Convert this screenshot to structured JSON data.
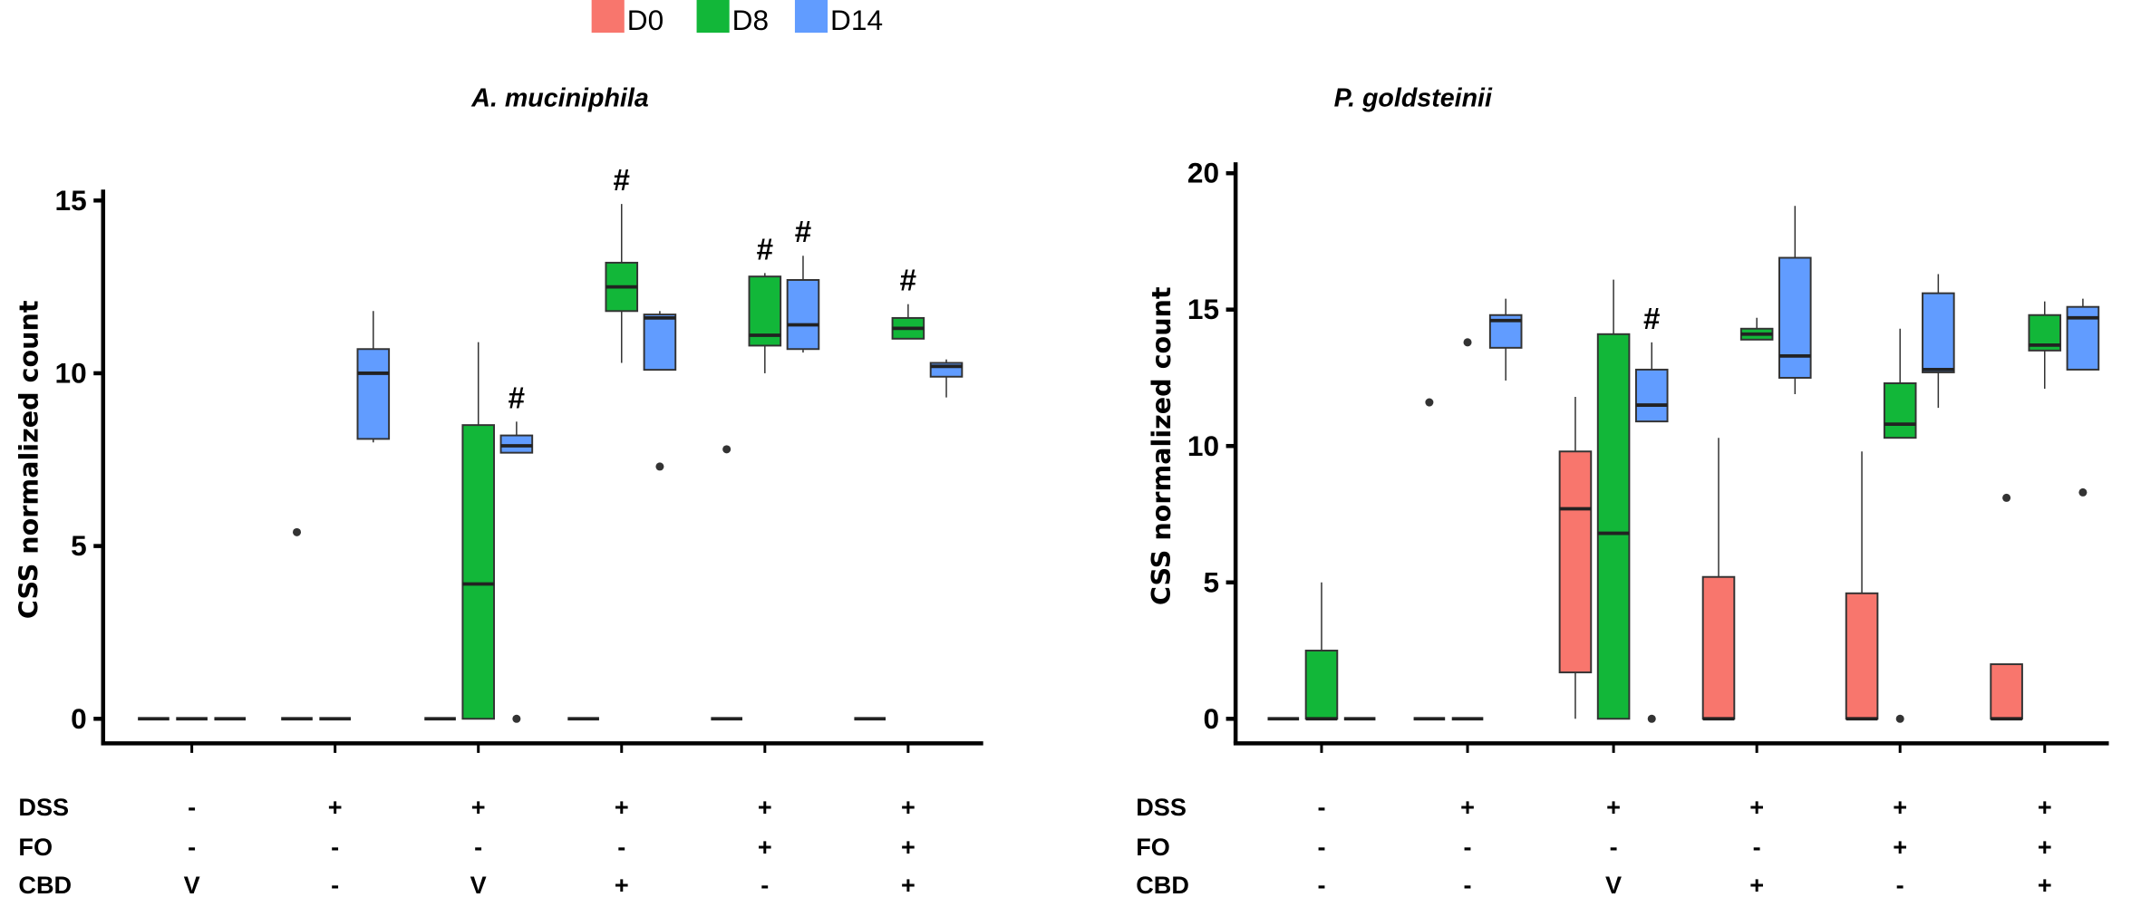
{
  "chart_data": [
    {
      "type": "box",
      "title": "A. muciniphila",
      "ylabel": "CSS normalized count",
      "ylim": [
        0,
        15
      ],
      "yticks": [
        0,
        5,
        10,
        15
      ],
      "series_names": [
        "D0",
        "D8",
        "D14"
      ],
      "treatment_rows": [
        {
          "label": "DSS",
          "values": [
            "-",
            "+",
            "+",
            "+",
            "+",
            "+"
          ]
        },
        {
          "label": "FO",
          "values": [
            "-",
            "-",
            "-",
            "-",
            "+",
            "+"
          ]
        },
        {
          "label": "CBD",
          "values": [
            "V",
            "-",
            "V",
            "+",
            "-",
            "+"
          ]
        }
      ],
      "groups": [
        {
          "D0": {
            "min": 0,
            "q1": 0,
            "median": 0,
            "q3": 0,
            "max": 0,
            "outliers": []
          },
          "D8": {
            "min": 0,
            "q1": 0,
            "median": 0,
            "q3": 0,
            "max": 0,
            "outliers": []
          },
          "D14": {
            "min": 0,
            "q1": 0,
            "median": 0,
            "q3": 0,
            "max": 0,
            "outliers": []
          },
          "marks": []
        },
        {
          "D0": {
            "min": 0,
            "q1": 0,
            "median": 0,
            "q3": 0,
            "max": 0,
            "outliers": [
              5.4
            ]
          },
          "D8": {
            "min": 0,
            "q1": 0,
            "median": 0,
            "q3": 0,
            "max": 0,
            "outliers": []
          },
          "D14": {
            "min": 8.0,
            "q1": 8.1,
            "median": 10.0,
            "q3": 10.7,
            "max": 11.8,
            "outliers": []
          },
          "marks": []
        },
        {
          "D0": {
            "min": 0,
            "q1": 0,
            "median": 0,
            "q3": 0,
            "max": 0,
            "outliers": []
          },
          "D8": {
            "min": 0,
            "q1": 0,
            "median": 3.9,
            "q3": 8.5,
            "max": 10.9,
            "outliers": []
          },
          "D14": {
            "min": 7.7,
            "q1": 7.7,
            "median": 7.9,
            "q3": 8.2,
            "max": 8.6,
            "outliers": [
              0
            ]
          },
          "marks": [
            "D14"
          ]
        },
        {
          "D0": {
            "min": 0,
            "q1": 0,
            "median": 0,
            "q3": 0,
            "max": 0,
            "outliers": []
          },
          "D8": {
            "min": 10.3,
            "q1": 11.8,
            "median": 12.5,
            "q3": 13.2,
            "max": 14.9,
            "outliers": []
          },
          "D14": {
            "min": 10.1,
            "q1": 10.1,
            "median": 11.6,
            "q3": 11.7,
            "max": 11.8,
            "outliers": [
              7.3
            ]
          },
          "marks": [
            "D8"
          ]
        },
        {
          "D0": {
            "min": 0,
            "q1": 0,
            "median": 0,
            "q3": 0,
            "max": 0,
            "outliers": [
              7.8
            ]
          },
          "D8": {
            "min": 10.0,
            "q1": 10.8,
            "median": 11.1,
            "q3": 12.8,
            "max": 12.9,
            "outliers": []
          },
          "D14": {
            "min": 10.6,
            "q1": 10.7,
            "median": 11.4,
            "q3": 12.7,
            "max": 13.4,
            "outliers": []
          },
          "marks": [
            "D8",
            "D14"
          ]
        },
        {
          "D0": {
            "min": 0,
            "q1": 0,
            "median": 0,
            "q3": 0,
            "max": 0,
            "outliers": []
          },
          "D8": {
            "min": 11.0,
            "q1": 11.0,
            "median": 11.3,
            "q3": 11.6,
            "max": 12.0,
            "outliers": []
          },
          "D14": {
            "min": 9.3,
            "q1": 9.9,
            "median": 10.2,
            "q3": 10.3,
            "max": 10.4,
            "outliers": []
          },
          "marks": [
            "D8"
          ]
        }
      ]
    },
    {
      "type": "box",
      "title": "P. goldsteinii",
      "ylabel": "CSS normalized count",
      "ylim": [
        0,
        20
      ],
      "yticks": [
        0,
        5,
        10,
        15,
        20
      ],
      "series_names": [
        "D0",
        "D8",
        "D14"
      ],
      "treatment_rows": [
        {
          "label": "DSS",
          "values": [
            "-",
            "+",
            "+",
            "+",
            "+",
            "+"
          ]
        },
        {
          "label": "FO",
          "values": [
            "-",
            "-",
            "-",
            "-",
            "+",
            "+"
          ]
        },
        {
          "label": "CBD",
          "values": [
            "-",
            "-",
            "V",
            "+",
            "-",
            "+"
          ]
        }
      ],
      "groups": [
        {
          "D0": {
            "min": 0,
            "q1": 0,
            "median": 0,
            "q3": 0,
            "max": 0,
            "outliers": []
          },
          "D8": {
            "min": 0,
            "q1": 0,
            "median": 0,
            "q3": 2.5,
            "max": 5.0,
            "outliers": []
          },
          "D14": {
            "min": 0,
            "q1": 0,
            "median": 0,
            "q3": 0,
            "max": 0,
            "outliers": []
          },
          "marks": []
        },
        {
          "D0": {
            "min": 0,
            "q1": 0,
            "median": 0,
            "q3": 0,
            "max": 0,
            "outliers": [
              11.6
            ]
          },
          "D8": {
            "min": 0,
            "q1": 0,
            "median": 0,
            "q3": 0,
            "max": 0,
            "outliers": [
              13.8
            ]
          },
          "D14": {
            "min": 12.4,
            "q1": 13.6,
            "median": 14.6,
            "q3": 14.8,
            "max": 15.4,
            "outliers": []
          },
          "marks": []
        },
        {
          "D0": {
            "min": 0,
            "q1": 1.7,
            "median": 7.7,
            "q3": 9.8,
            "max": 11.8,
            "outliers": []
          },
          "D8": {
            "min": 0,
            "q1": 0,
            "median": 6.8,
            "q3": 14.1,
            "max": 16.1,
            "outliers": []
          },
          "D14": {
            "min": 10.9,
            "q1": 10.9,
            "median": 11.5,
            "q3": 12.8,
            "max": 13.8,
            "outliers": [
              0
            ]
          },
          "marks": [
            "D14"
          ]
        },
        {
          "D0": {
            "min": 0,
            "q1": 0,
            "median": 0,
            "q3": 5.2,
            "max": 10.3,
            "outliers": []
          },
          "D8": {
            "min": 13.9,
            "q1": 13.9,
            "median": 14.1,
            "q3": 14.3,
            "max": 14.7,
            "outliers": []
          },
          "D14": {
            "min": 11.9,
            "q1": 12.5,
            "median": 13.3,
            "q3": 16.9,
            "max": 18.8,
            "outliers": []
          },
          "marks": []
        },
        {
          "D0": {
            "min": 0,
            "q1": 0,
            "median": 0,
            "q3": 4.6,
            "max": 9.8,
            "outliers": []
          },
          "D8": {
            "min": 10.3,
            "q1": 10.3,
            "median": 10.8,
            "q3": 12.3,
            "max": 14.3,
            "outliers": [
              0
            ]
          },
          "D14": {
            "min": 11.4,
            "q1": 12.7,
            "median": 12.8,
            "q3": 15.6,
            "max": 16.3,
            "outliers": []
          },
          "marks": []
        },
        {
          "D0": {
            "min": 0,
            "q1": 0,
            "median": 0,
            "q3": 2.0,
            "max": 2.0,
            "outliers": [
              8.1
            ]
          },
          "D8": {
            "min": 12.1,
            "q1": 13.5,
            "median": 13.7,
            "q3": 14.8,
            "max": 15.3,
            "outliers": []
          },
          "D14": {
            "min": 12.8,
            "q1": 12.8,
            "median": 14.7,
            "q3": 15.1,
            "max": 15.4,
            "outliers": [
              8.3
            ]
          },
          "marks": []
        }
      ]
    }
  ],
  "legend": {
    "items": [
      {
        "label": "D0",
        "color": "#F8766D"
      },
      {
        "label": "D8",
        "color": "#12B739"
      },
      {
        "label": "D14",
        "color": "#619CFF"
      }
    ],
    "placement": "top-center"
  },
  "significance_symbol": "#"
}
